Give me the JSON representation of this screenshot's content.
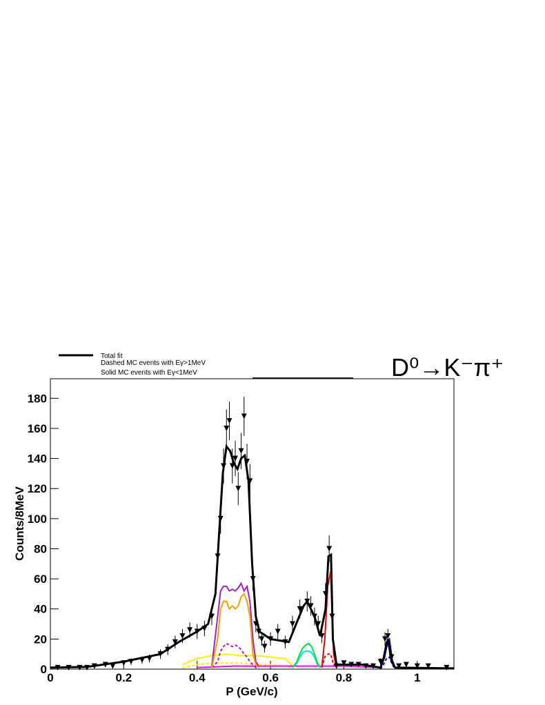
{
  "chart_data": {
    "type": "line",
    "annotation": "D⁰→K⁻π⁺",
    "x_label": "P (GeV/c)",
    "y_label": "Counts/8MeV",
    "xlim": [
      0,
      1.1
    ],
    "ylim": [
      0,
      193
    ],
    "xticks": [
      0,
      0.2,
      0.4,
      0.6,
      0.8,
      1
    ],
    "yticks": [
      0,
      20,
      40,
      60,
      80,
      100,
      120,
      140,
      160,
      180
    ],
    "legend_notes": [
      "Dashed MC events with Eγ>1MeV",
      "Solid MC events with Eγ<1MeV"
    ],
    "series": [
      {
        "style": "points",
        "color": "#000000",
        "x": [
          0.02,
          0.05,
          0.08,
          0.1,
          0.12,
          0.15,
          0.17,
          0.2,
          0.22,
          0.25,
          0.27,
          0.3,
          0.32,
          0.34,
          0.36,
          0.38,
          0.4,
          0.42,
          0.44,
          0.456,
          0.464,
          0.472,
          0.48,
          0.488,
          0.496,
          0.504,
          0.512,
          0.52,
          0.528,
          0.536,
          0.544,
          0.552,
          0.56,
          0.568,
          0.576,
          0.584,
          0.6,
          0.62,
          0.64,
          0.66,
          0.68,
          0.7,
          0.71,
          0.72,
          0.73,
          0.74,
          0.75,
          0.76,
          0.768,
          0.78,
          0.8,
          0.82,
          0.84,
          0.86,
          0.88,
          0.9,
          0.912,
          0.92,
          0.93,
          0.95,
          0.97,
          1,
          1.03,
          1.08
        ],
        "values": [
          1,
          1,
          1,
          1,
          2,
          3,
          2,
          4,
          5,
          6,
          7,
          10,
          13,
          18,
          22,
          26,
          25,
          27,
          35,
          75,
          100,
          135,
          160,
          165,
          135,
          140,
          120,
          145,
          168,
          138,
          125,
          60,
          30,
          25,
          20,
          15,
          20,
          25,
          18,
          30,
          40,
          45,
          42,
          35,
          30,
          22,
          50,
          80,
          35,
          2,
          4,
          3,
          3,
          2,
          2,
          5,
          20,
          22,
          8,
          2,
          3,
          2,
          2,
          1
        ],
        "errors": [
          1,
          1,
          1,
          1,
          1.4,
          1.7,
          1.4,
          2,
          2.2,
          2.4,
          2.6,
          3.2,
          3.6,
          4.2,
          4.7,
          5.1,
          5,
          5.2,
          5.9,
          8.7,
          10,
          11.6,
          12.6,
          12.8,
          11.6,
          11.8,
          11,
          12,
          13,
          11.7,
          11.2,
          7.7,
          5.5,
          5,
          4.5,
          3.9,
          4.5,
          5,
          4.2,
          5.5,
          6.3,
          6.7,
          6.5,
          5.9,
          5.5,
          4.7,
          7.1,
          8.9,
          5.9,
          1.4,
          2,
          1.7,
          1.7,
          1.4,
          1.4,
          2.2,
          4.5,
          4.7,
          2.8,
          1.4,
          1.7,
          1.4,
          1.4,
          1
        ]
      },
      {
        "name": "Total fit",
        "style": "line",
        "color": "#000000",
        "width": 3,
        "x": [
          0,
          0.1,
          0.2,
          0.3,
          0.35,
          0.4,
          0.43,
          0.45,
          0.46,
          0.47,
          0.48,
          0.49,
          0.5,
          0.51,
          0.52,
          0.53,
          0.54,
          0.55,
          0.56,
          0.57,
          0.6,
          0.65,
          0.67,
          0.69,
          0.7,
          0.72,
          0.735,
          0.75,
          0.758,
          0.765,
          0.77,
          0.78,
          0.85,
          0.9,
          0.91,
          0.92,
          0.93,
          0.94,
          1.1
        ],
        "values": [
          1,
          1.5,
          5,
          10,
          18,
          25,
          30,
          50,
          90,
          130,
          148,
          145,
          137,
          133,
          140,
          142,
          125,
          70,
          35,
          25,
          20,
          18,
          30,
          42,
          45,
          35,
          22,
          40,
          75,
          76,
          20,
          3,
          3,
          1,
          8,
          20,
          5,
          1,
          0.5
        ]
      },
      {
        "style": "line",
        "color": "#ffee00",
        "dashed": true,
        "x": [
          0.36,
          0.4,
          0.44,
          0.48,
          0.52,
          0.56,
          0.6,
          0.64,
          0.66
        ],
        "values": [
          1,
          3,
          4,
          4,
          4,
          3,
          3,
          2,
          1
        ]
      },
      {
        "style": "line",
        "color": "#ffee00",
        "x": [
          0.36,
          0.4,
          0.44,
          0.48,
          0.52,
          0.56,
          0.6,
          0.64,
          0.66
        ],
        "values": [
          3,
          7,
          9,
          10,
          9,
          9,
          8,
          7,
          2
        ]
      },
      {
        "style": "line",
        "color": "#ff00ff",
        "x": [
          0.4,
          0.5,
          0.6,
          0.7,
          0.8,
          0.9
        ],
        "values": [
          1,
          2,
          2,
          2,
          2,
          1
        ]
      },
      {
        "style": "line",
        "color": "#a020c0",
        "dashed": true,
        "x": [
          0.44,
          0.456,
          0.464,
          0.472,
          0.48,
          0.488,
          0.496,
          0.504,
          0.512,
          0.52,
          0.528,
          0.536,
          0.544,
          0.552,
          0.56,
          0.568
        ],
        "values": [
          1,
          5,
          12,
          15,
          17,
          16,
          15,
          16,
          15,
          13,
          10,
          8,
          5,
          3,
          1,
          0
        ]
      },
      {
        "style": "line",
        "color": "#a020c0",
        "x": [
          0.44,
          0.456,
          0.464,
          0.472,
          0.48,
          0.488,
          0.496,
          0.504,
          0.512,
          0.52,
          0.528,
          0.536,
          0.544,
          0.552,
          0.56,
          0.568
        ],
        "values": [
          2,
          35,
          52,
          55,
          55,
          52,
          53,
          52,
          54,
          57,
          52,
          55,
          45,
          20,
          5,
          2
        ]
      },
      {
        "style": "line",
        "color": "#f0a000",
        "x": [
          0.44,
          0.456,
          0.464,
          0.472,
          0.48,
          0.488,
          0.496,
          0.504,
          0.512,
          0.52,
          0.528,
          0.536,
          0.544,
          0.552,
          0.56,
          0.568
        ],
        "values": [
          1,
          20,
          40,
          45,
          45,
          40,
          42,
          40,
          42,
          48,
          50,
          45,
          35,
          10,
          3,
          1
        ]
      },
      {
        "style": "line",
        "color": "#00e0e0",
        "x": [
          0.66,
          0.672,
          0.68,
          0.688,
          0.696,
          0.704,
          0.712,
          0.72,
          0.728,
          0.736
        ],
        "values": [
          1,
          4,
          8,
          11,
          12,
          12,
          11,
          8,
          3,
          1
        ]
      },
      {
        "style": "line",
        "color": "#00e040",
        "x": [
          0.66,
          0.672,
          0.68,
          0.688,
          0.696,
          0.704,
          0.712,
          0.72,
          0.728,
          0.736
        ],
        "values": [
          1,
          5,
          10,
          14,
          16,
          17,
          15,
          10,
          4,
          1
        ]
      },
      {
        "style": "line",
        "color": "#e00000",
        "dashed": true,
        "x": [
          0.74,
          0.748,
          0.756,
          0.764,
          0.772,
          0.78
        ],
        "values": [
          1,
          8,
          10,
          10,
          3,
          1
        ]
      },
      {
        "style": "line",
        "color": "#e00000",
        "x": [
          0.74,
          0.748,
          0.756,
          0.764,
          0.772,
          0.78
        ],
        "values": [
          1,
          20,
          55,
          65,
          10,
          1
        ]
      },
      {
        "style": "line",
        "color": "#0000c0",
        "dashed": true,
        "x": [
          0.9,
          0.908,
          0.916,
          0.924,
          0.932,
          0.94
        ],
        "values": [
          0,
          3,
          7,
          8,
          3,
          0
        ]
      },
      {
        "style": "line",
        "color": "#0000c0",
        "x": [
          0.9,
          0.908,
          0.916,
          0.924,
          0.932,
          0.94
        ],
        "values": [
          1,
          8,
          18,
          20,
          6,
          1
        ]
      }
    ]
  }
}
